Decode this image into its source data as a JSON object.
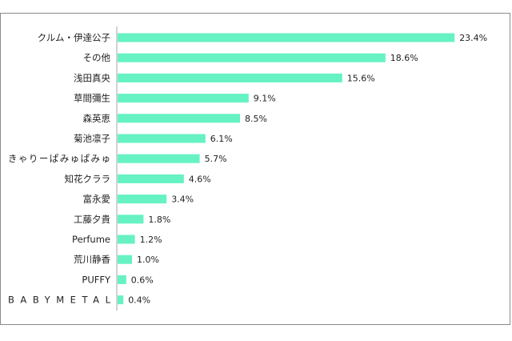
{
  "chart_data": {
    "type": "bar",
    "orientation": "horizontal",
    "title": "",
    "xlabel": "",
    "ylabel": "",
    "xlim": [
      0,
      25
    ],
    "grid": false,
    "legend": "none",
    "bar_color": "#66f2c2",
    "axis_color": "#a6a6a6",
    "categories": [
      "クルム・伊達公子",
      "その他",
      "浅田真央",
      "草間彌生",
      "森英恵",
      "菊池凛子",
      "きゃりーぱみゅぱみゅ",
      "知花クララ",
      "富永愛",
      "工藤夕貴",
      "Perfume",
      "荒川静香",
      "PUFFY",
      "BABYMETAL"
    ],
    "values": [
      23.4,
      18.6,
      15.6,
      9.1,
      8.5,
      6.1,
      5.7,
      4.6,
      3.4,
      1.8,
      1.2,
      1.0,
      0.6,
      0.4
    ],
    "value_labels": [
      "23.4%",
      "18.6%",
      "15.6%",
      "9.1%",
      "8.5%",
      "6.1%",
      "5.7%",
      "4.6%",
      "3.4%",
      "1.8%",
      "1.2%",
      "1.0%",
      "0.6%",
      "0.4%"
    ]
  }
}
